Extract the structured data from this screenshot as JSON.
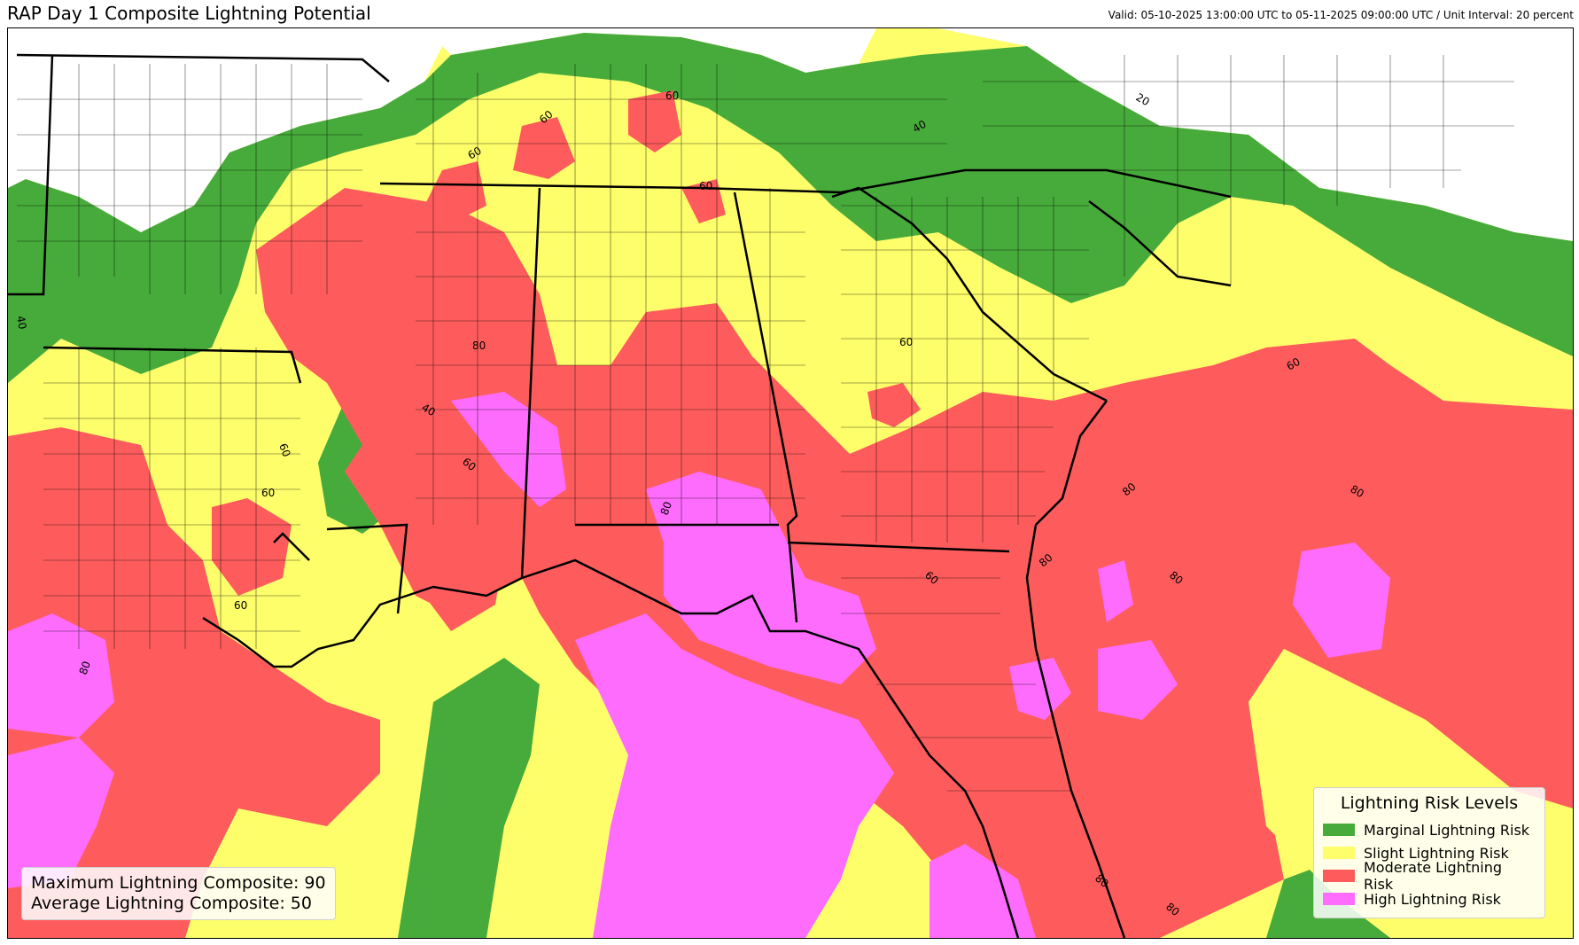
{
  "header": {
    "title": "RAP Day 1 Composite Lightning Potential",
    "valid": "Valid: 05-10-2025 13:00:00 UTC to 05-11-2025 09:00:00 UTC / Unit Interval: 20 percent"
  },
  "colors": {
    "marginal": "#47ab3b",
    "slight": "#fefe6b",
    "moderate": "#fe5c5c",
    "high": "#fe6cfe"
  },
  "legend": {
    "title": "Lightning Risk Levels",
    "items": [
      {
        "label": "Marginal Lightning Risk",
        "color": "#47ab3b"
      },
      {
        "label": "Slight Lightning Risk",
        "color": "#fefe6b"
      },
      {
        "label": "Moderate Lightning Risk",
        "color": "#fe5c5c"
      },
      {
        "label": "High Lightning Risk",
        "color": "#fe6cfe"
      }
    ]
  },
  "stats": {
    "max_line": "Maximum Lightning Composite: 90",
    "avg_line": "Average Lightning Composite: 50"
  },
  "contour_labels": [
    "20",
    "40",
    "40",
    "40",
    "60",
    "60",
    "60",
    "60",
    "60",
    "60",
    "60",
    "60",
    "60",
    "60",
    "60",
    "80",
    "80",
    "80",
    "80",
    "80",
    "80",
    "80",
    "80",
    "80"
  ]
}
